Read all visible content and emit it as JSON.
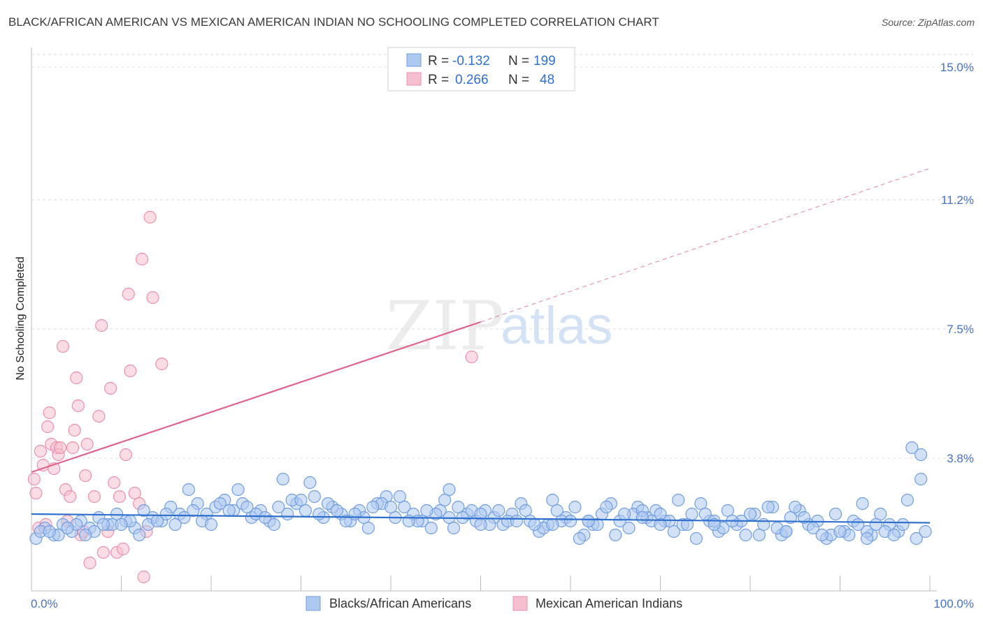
{
  "title": "BLACK/AFRICAN AMERICAN VS MEXICAN AMERICAN INDIAN NO SCHOOLING COMPLETED CORRELATION CHART",
  "source": "Source: ZipAtlas.com",
  "watermark": {
    "zip": "ZIP",
    "atlas": "atlas"
  },
  "colors": {
    "blue_fill": "#aec9f0",
    "blue_stroke": "#6f9de0",
    "blue_line": "#2f6fce",
    "pink_fill": "#f6bfd0",
    "pink_stroke": "#ec8fae",
    "pink_line": "#e0628c",
    "tick_color": "#4472c4",
    "grid": "#dddddd"
  },
  "legend": {
    "rows": [
      {
        "r_label": "R =",
        "r_value": "-0.132",
        "n_label": "N =",
        "n_value": "199"
      },
      {
        "r_label": "R =",
        "r_value": "0.266",
        "n_label": "N =",
        "n_value": "48"
      }
    ]
  },
  "bottom_legend": [
    "Blacks/African Americans",
    "Mexican American Indians"
  ],
  "chart_data": {
    "type": "scatter",
    "title": "BLACK/AFRICAN AMERICAN VS MEXICAN AMERICAN INDIAN NO SCHOOLING COMPLETED CORRELATION CHART",
    "xlabel": "",
    "ylabel": "No Schooling Completed",
    "xlim": [
      0,
      100
    ],
    "ylim": [
      0,
      15.4
    ],
    "x_tick_labels": [
      "0.0%",
      "100.0%"
    ],
    "y_ticks": [
      3.8,
      7.5,
      11.2,
      15.0
    ],
    "y_tick_labels": [
      "3.8%",
      "7.5%",
      "11.2%",
      "15.0%"
    ],
    "grid": true,
    "legend_position": "top-center",
    "series": [
      {
        "name": "Blacks/African Americans",
        "color": "blue",
        "R": -0.132,
        "N": 199,
        "trend": {
          "x": [
            0,
            100
          ],
          "y": [
            2.2,
            1.95
          ]
        },
        "points": [
          [
            0.5,
            1.5
          ],
          [
            1.5,
            1.8
          ],
          [
            2.5,
            1.6
          ],
          [
            3.5,
            1.9
          ],
          [
            4.5,
            1.7
          ],
          [
            5.5,
            2.0
          ],
          [
            6.5,
            1.8
          ],
          [
            7.5,
            2.1
          ],
          [
            8.5,
            1.9
          ],
          [
            9.5,
            2.2
          ],
          [
            10.5,
            2.0
          ],
          [
            11.5,
            1.8
          ],
          [
            12.5,
            2.3
          ],
          [
            13.5,
            2.1
          ],
          [
            14.5,
            2.0
          ],
          [
            15.5,
            2.4
          ],
          [
            16.5,
            2.2
          ],
          [
            17.5,
            2.9
          ],
          [
            18.5,
            2.5
          ],
          [
            19.5,
            2.2
          ],
          [
            20.5,
            2.4
          ],
          [
            21.5,
            2.6
          ],
          [
            22.5,
            2.3
          ],
          [
            23.5,
            2.5
          ],
          [
            24.5,
            2.1
          ],
          [
            25.5,
            2.3
          ],
          [
            26.5,
            2.0
          ],
          [
            27.5,
            2.4
          ],
          [
            28.5,
            2.2
          ],
          [
            29.5,
            2.5
          ],
          [
            30.5,
            2.3
          ],
          [
            31.5,
            2.7
          ],
          [
            32.5,
            2.1
          ],
          [
            33.5,
            2.4
          ],
          [
            34.5,
            2.2
          ],
          [
            35.5,
            2.0
          ],
          [
            36.5,
            2.3
          ],
          [
            37.5,
            1.8
          ],
          [
            38.5,
            2.5
          ],
          [
            39.5,
            2.7
          ],
          [
            40.5,
            2.1
          ],
          [
            41.5,
            2.4
          ],
          [
            42.5,
            2.2
          ],
          [
            43.5,
            2.0
          ],
          [
            44.5,
            1.8
          ],
          [
            45.5,
            2.3
          ],
          [
            46.5,
            2.1
          ],
          [
            47.5,
            2.4
          ],
          [
            48.5,
            2.2
          ],
          [
            49.5,
            2.0
          ],
          [
            50.5,
            2.3
          ],
          [
            51.5,
            2.1
          ],
          [
            52.5,
            1.9
          ],
          [
            53.5,
            2.2
          ],
          [
            54.5,
            2.5
          ],
          [
            55.5,
            2.0
          ],
          [
            56.5,
            1.7
          ],
          [
            57.5,
            1.9
          ],
          [
            58.5,
            2.3
          ],
          [
            59.5,
            2.1
          ],
          [
            60.5,
            2.4
          ],
          [
            61.5,
            1.6
          ],
          [
            62.5,
            1.9
          ],
          [
            63.5,
            2.2
          ],
          [
            64.5,
            2.5
          ],
          [
            65.5,
            2.0
          ],
          [
            66.5,
            1.8
          ],
          [
            67.5,
            2.4
          ],
          [
            68.5,
            2.1
          ],
          [
            69.5,
            2.3
          ],
          [
            70.5,
            2.0
          ],
          [
            71.5,
            1.7
          ],
          [
            72.5,
            1.9
          ],
          [
            73.5,
            2.2
          ],
          [
            74.5,
            2.5
          ],
          [
            75.5,
            2.0
          ],
          [
            76.5,
            1.7
          ],
          [
            77.5,
            2.3
          ],
          [
            78.5,
            1.9
          ],
          [
            79.5,
            1.6
          ],
          [
            80.5,
            2.2
          ],
          [
            81.5,
            1.9
          ],
          [
            82.5,
            2.4
          ],
          [
            83.5,
            1.6
          ],
          [
            84.5,
            2.1
          ],
          [
            85.5,
            2.3
          ],
          [
            86.5,
            1.9
          ],
          [
            87.5,
            2.0
          ],
          [
            88.5,
            1.5
          ],
          [
            89.5,
            2.2
          ],
          [
            90.5,
            1.7
          ],
          [
            91.5,
            2.0
          ],
          [
            92.5,
            2.5
          ],
          [
            93.5,
            1.6
          ],
          [
            94.5,
            2.2
          ],
          [
            95.5,
            1.9
          ],
          [
            96.5,
            1.7
          ],
          [
            97.5,
            2.6
          ],
          [
            98.5,
            1.5
          ],
          [
            99.5,
            1.7
          ],
          [
            1.0,
            1.7
          ],
          [
            3.0,
            1.6
          ],
          [
            5.0,
            1.9
          ],
          [
            7.0,
            1.7
          ],
          [
            9.0,
            1.9
          ],
          [
            11.0,
            2.0
          ],
          [
            13.0,
            1.9
          ],
          [
            15.0,
            2.2
          ],
          [
            17.0,
            2.1
          ],
          [
            19.0,
            2.0
          ],
          [
            21.0,
            2.5
          ],
          [
            23.0,
            2.9
          ],
          [
            25.0,
            2.2
          ],
          [
            27.0,
            1.9
          ],
          [
            29.0,
            2.6
          ],
          [
            31.0,
            3.1
          ],
          [
            33.0,
            2.5
          ],
          [
            35.0,
            2.0
          ],
          [
            37.0,
            2.1
          ],
          [
            39.0,
            2.5
          ],
          [
            41.0,
            2.7
          ],
          [
            43.0,
            2.0
          ],
          [
            45.0,
            2.2
          ],
          [
            47.0,
            1.8
          ],
          [
            49.0,
            2.3
          ],
          [
            51.0,
            1.9
          ],
          [
            53.0,
            2.0
          ],
          [
            55.0,
            2.3
          ],
          [
            57.0,
            1.8
          ],
          [
            59.0,
            2.0
          ],
          [
            61.0,
            1.5
          ],
          [
            63.0,
            1.9
          ],
          [
            65.0,
            1.6
          ],
          [
            67.0,
            2.2
          ],
          [
            69.0,
            2.0
          ],
          [
            71.0,
            2.0
          ],
          [
            73.0,
            1.9
          ],
          [
            75.0,
            2.2
          ],
          [
            77.0,
            1.8
          ],
          [
            79.0,
            2.0
          ],
          [
            81.0,
            1.6
          ],
          [
            83.0,
            1.8
          ],
          [
            85.0,
            2.4
          ],
          [
            87.0,
            1.8
          ],
          [
            89.0,
            1.6
          ],
          [
            91.0,
            1.6
          ],
          [
            93.0,
            1.7
          ],
          [
            95.0,
            1.7
          ],
          [
            97.0,
            1.9
          ],
          [
            99.0,
            3.9
          ],
          [
            2.0,
            1.7
          ],
          [
            4.0,
            1.8
          ],
          [
            6.0,
            1.6
          ],
          [
            8.0,
            1.9
          ],
          [
            12.0,
            1.6
          ],
          [
            14.0,
            2.0
          ],
          [
            16.0,
            1.9
          ],
          [
            18.0,
            2.3
          ],
          [
            20.0,
            1.9
          ],
          [
            22.0,
            2.3
          ],
          [
            24.0,
            2.4
          ],
          [
            26.0,
            2.1
          ],
          [
            28.0,
            3.2
          ],
          [
            30.0,
            2.6
          ],
          [
            32.0,
            2.2
          ],
          [
            34.0,
            2.3
          ],
          [
            36.0,
            2.2
          ],
          [
            38.0,
            2.4
          ],
          [
            40.0,
            2.4
          ],
          [
            42.0,
            2.0
          ],
          [
            44.0,
            2.3
          ],
          [
            46.0,
            2.6
          ],
          [
            48.0,
            2.1
          ],
          [
            50.0,
            2.2
          ],
          [
            52.0,
            2.3
          ],
          [
            54.0,
            2.0
          ],
          [
            56.0,
            1.9
          ],
          [
            58.0,
            1.9
          ],
          [
            60.0,
            2.0
          ],
          [
            62.0,
            2.0
          ],
          [
            64.0,
            2.4
          ],
          [
            66.0,
            2.2
          ],
          [
            68.0,
            2.3
          ],
          [
            70.0,
            2.2
          ],
          [
            72.0,
            2.6
          ],
          [
            74.0,
            1.5
          ],
          [
            76.0,
            2.0
          ],
          [
            78.0,
            2.0
          ],
          [
            80.0,
            2.2
          ],
          [
            82.0,
            2.4
          ],
          [
            84.0,
            1.7
          ],
          [
            86.0,
            2.1
          ],
          [
            88.0,
            1.6
          ],
          [
            90.0,
            1.7
          ],
          [
            92.0,
            1.9
          ],
          [
            94.0,
            1.9
          ],
          [
            96.0,
            1.6
          ],
          [
            98.0,
            4.1
          ],
          [
            99.0,
            3.2
          ],
          [
            46.5,
            2.9
          ],
          [
            10.0,
            1.9
          ],
          [
            50.0,
            1.9
          ],
          [
            58.0,
            2.6
          ],
          [
            62.0,
            2.0
          ],
          [
            68.0,
            2.1
          ],
          [
            70.0,
            1.9
          ],
          [
            76.0,
            1.9
          ],
          [
            84.0,
            1.7
          ],
          [
            93.0,
            1.5
          ]
        ]
      },
      {
        "name": "Mexican American Indians",
        "color": "pink",
        "R": 0.266,
        "N": 48,
        "trend": {
          "x": [
            0,
            50
          ],
          "y": [
            3.4,
            7.7
          ]
        },
        "trend_dashed": {
          "x": [
            50,
            100
          ],
          "y": [
            7.7,
            12.1
          ]
        },
        "points": [
          [
            0.3,
            3.2
          ],
          [
            0.5,
            2.8
          ],
          [
            0.8,
            1.8
          ],
          [
            1.0,
            4.0
          ],
          [
            1.3,
            3.6
          ],
          [
            1.6,
            1.9
          ],
          [
            1.8,
            4.7
          ],
          [
            2.0,
            5.1
          ],
          [
            2.2,
            4.2
          ],
          [
            2.5,
            3.5
          ],
          [
            2.8,
            4.1
          ],
          [
            3.0,
            3.9
          ],
          [
            3.2,
            4.1
          ],
          [
            3.5,
            7.0
          ],
          [
            3.8,
            2.9
          ],
          [
            4.0,
            2.0
          ],
          [
            4.3,
            2.7
          ],
          [
            4.6,
            4.1
          ],
          [
            4.8,
            4.6
          ],
          [
            5.0,
            6.1
          ],
          [
            5.2,
            5.3
          ],
          [
            5.5,
            1.6
          ],
          [
            5.8,
            1.7
          ],
          [
            6.0,
            3.3
          ],
          [
            6.2,
            4.2
          ],
          [
            6.5,
            0.8
          ],
          [
            7.0,
            2.7
          ],
          [
            7.5,
            5.0
          ],
          [
            7.8,
            7.6
          ],
          [
            8.0,
            1.1
          ],
          [
            8.5,
            1.7
          ],
          [
            8.8,
            5.8
          ],
          [
            9.2,
            3.1
          ],
          [
            9.5,
            1.1
          ],
          [
            9.8,
            2.7
          ],
          [
            10.2,
            1.2
          ],
          [
            10.5,
            3.9
          ],
          [
            10.8,
            8.5
          ],
          [
            11.0,
            6.3
          ],
          [
            11.5,
            2.8
          ],
          [
            12.0,
            2.5
          ],
          [
            12.3,
            9.5
          ],
          [
            12.5,
            0.4
          ],
          [
            12.8,
            1.7
          ],
          [
            13.2,
            10.7
          ],
          [
            13.5,
            8.4
          ],
          [
            14.5,
            6.5
          ],
          [
            49.0,
            6.7
          ]
        ]
      }
    ]
  }
}
